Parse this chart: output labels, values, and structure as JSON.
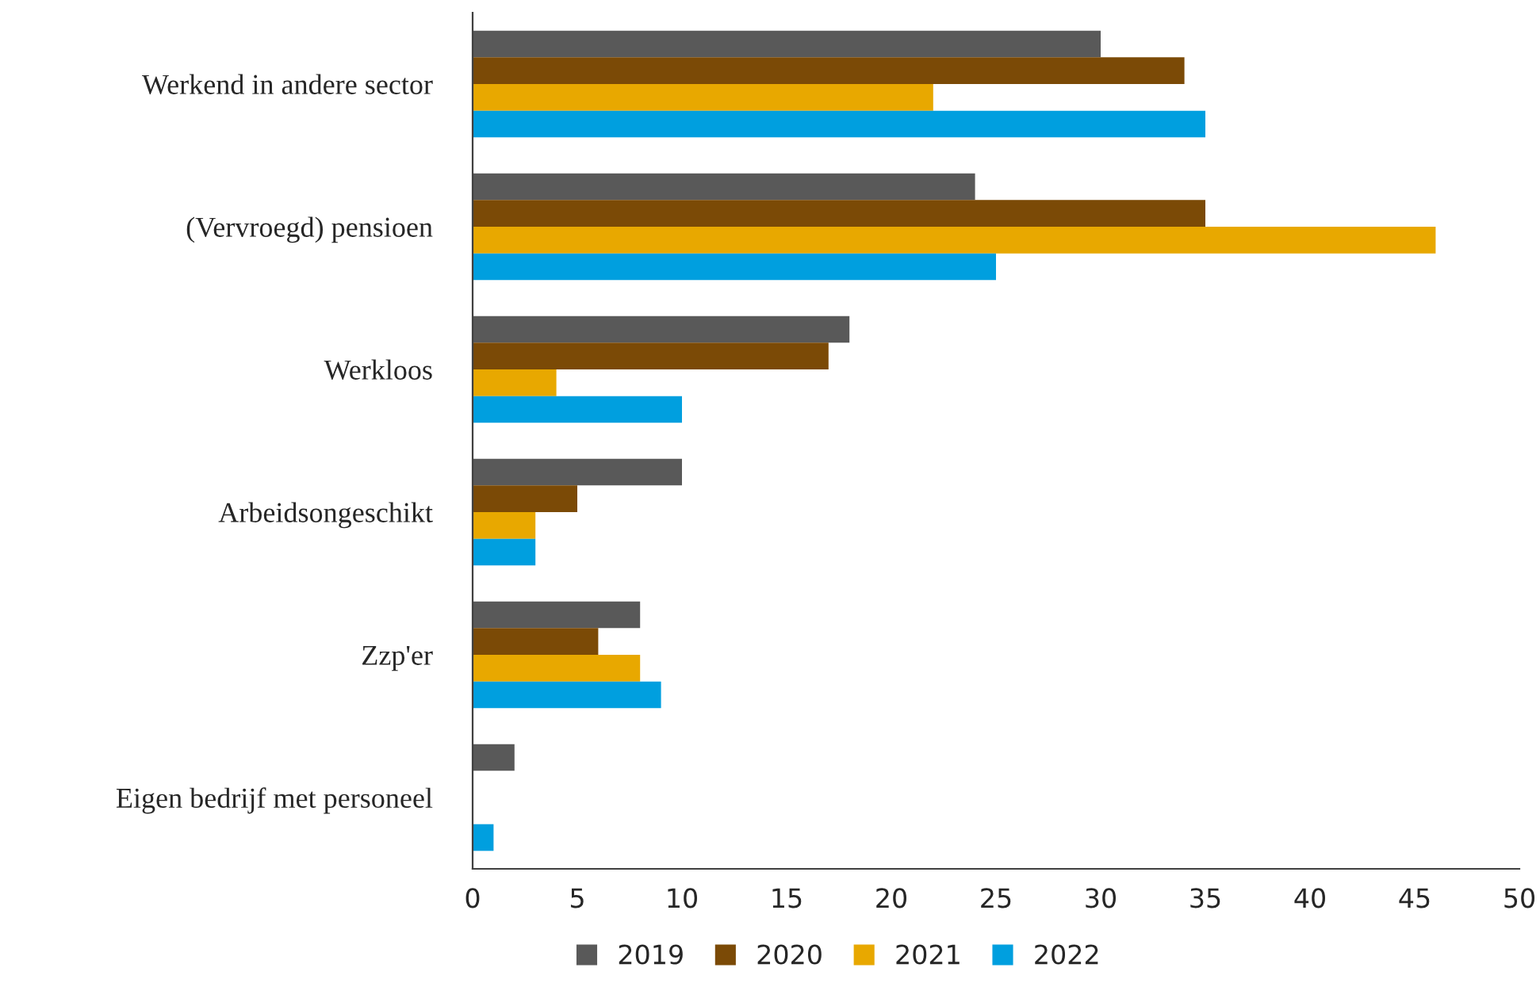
{
  "chart_data": {
    "type": "bar",
    "orientation": "horizontal",
    "categories": [
      "Werkend in andere sector",
      "(Vervroegd) pensioen",
      "Werkloos",
      "Arbeidsongeschikt",
      "Zzp'er",
      "Eigen bedrijf met personeel"
    ],
    "series": [
      {
        "name": "2019",
        "color": "#595959",
        "values": [
          30,
          24,
          18,
          10,
          8,
          2
        ]
      },
      {
        "name": "2020",
        "color": "#7b4a06",
        "values": [
          34,
          35,
          17,
          5,
          6,
          null
        ]
      },
      {
        "name": "2021",
        "color": "#e8a800",
        "values": [
          22,
          46,
          4,
          3,
          8,
          null
        ]
      },
      {
        "name": "2022",
        "color": "#009fdf",
        "values": [
          35,
          25,
          10,
          3,
          9,
          1
        ]
      }
    ],
    "xlim": [
      0,
      50
    ],
    "xticks": [
      0,
      5,
      10,
      15,
      20,
      25,
      30,
      35,
      40,
      45,
      50
    ],
    "grid": false,
    "legend": "bottom"
  }
}
